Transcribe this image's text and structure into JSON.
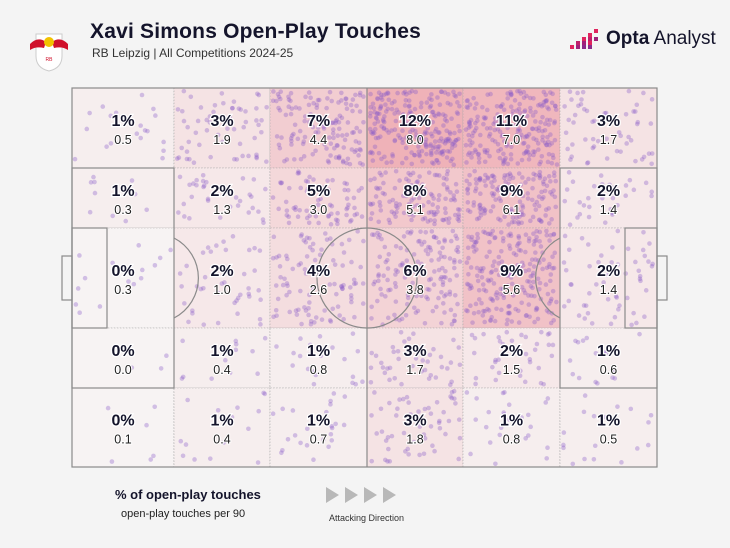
{
  "header": {
    "title": "Xavi Simons Open-Play Touches",
    "subtitle": "RB Leipzig | All Competitions 2024-25",
    "brand_bold": "Opta",
    "brand_light": "Analyst",
    "club_logo": "rb-leipzig-crest"
  },
  "chart_data": {
    "type": "heatmap",
    "title": "Xavi Simons Open-Play Touches",
    "orientation": "pitch, attacking left to right",
    "rows": 5,
    "cols": 6,
    "pct_grid": [
      [
        "1%",
        "3%",
        "7%",
        "12%",
        "11%",
        "3%"
      ],
      [
        "1%",
        "2%",
        "5%",
        "8%",
        "9%",
        "2%"
      ],
      [
        "0%",
        "2%",
        "4%",
        "6%",
        "9%",
        "2%"
      ],
      [
        "0%",
        "1%",
        "1%",
        "3%",
        "2%",
        "1%"
      ],
      [
        "0%",
        "1%",
        "1%",
        "3%",
        "1%",
        "1%"
      ]
    ],
    "per90_grid": [
      [
        "0.5",
        "1.9",
        "4.4",
        "8.0",
        "7.0",
        "1.7"
      ],
      [
        "0.3",
        "1.3",
        "3.0",
        "5.1",
        "6.1",
        "1.4"
      ],
      [
        "0.3",
        "1.0",
        "2.6",
        "3.8",
        "5.6",
        "1.4"
      ],
      [
        "0.0",
        "0.4",
        "0.8",
        "1.7",
        "1.5",
        "0.6"
      ],
      [
        "0.1",
        "0.4",
        "0.7",
        "1.8",
        "0.8",
        "0.5"
      ]
    ],
    "colors": {
      "low": "#f7f3f3",
      "high": "#efb2b8",
      "dots": "#8a5cc8",
      "lines": "#8a8a8a"
    }
  },
  "legend": {
    "pct_label": "% of open-play touches",
    "per90_label": "open-play touches per 90",
    "direction_label": "Attacking Direction"
  }
}
